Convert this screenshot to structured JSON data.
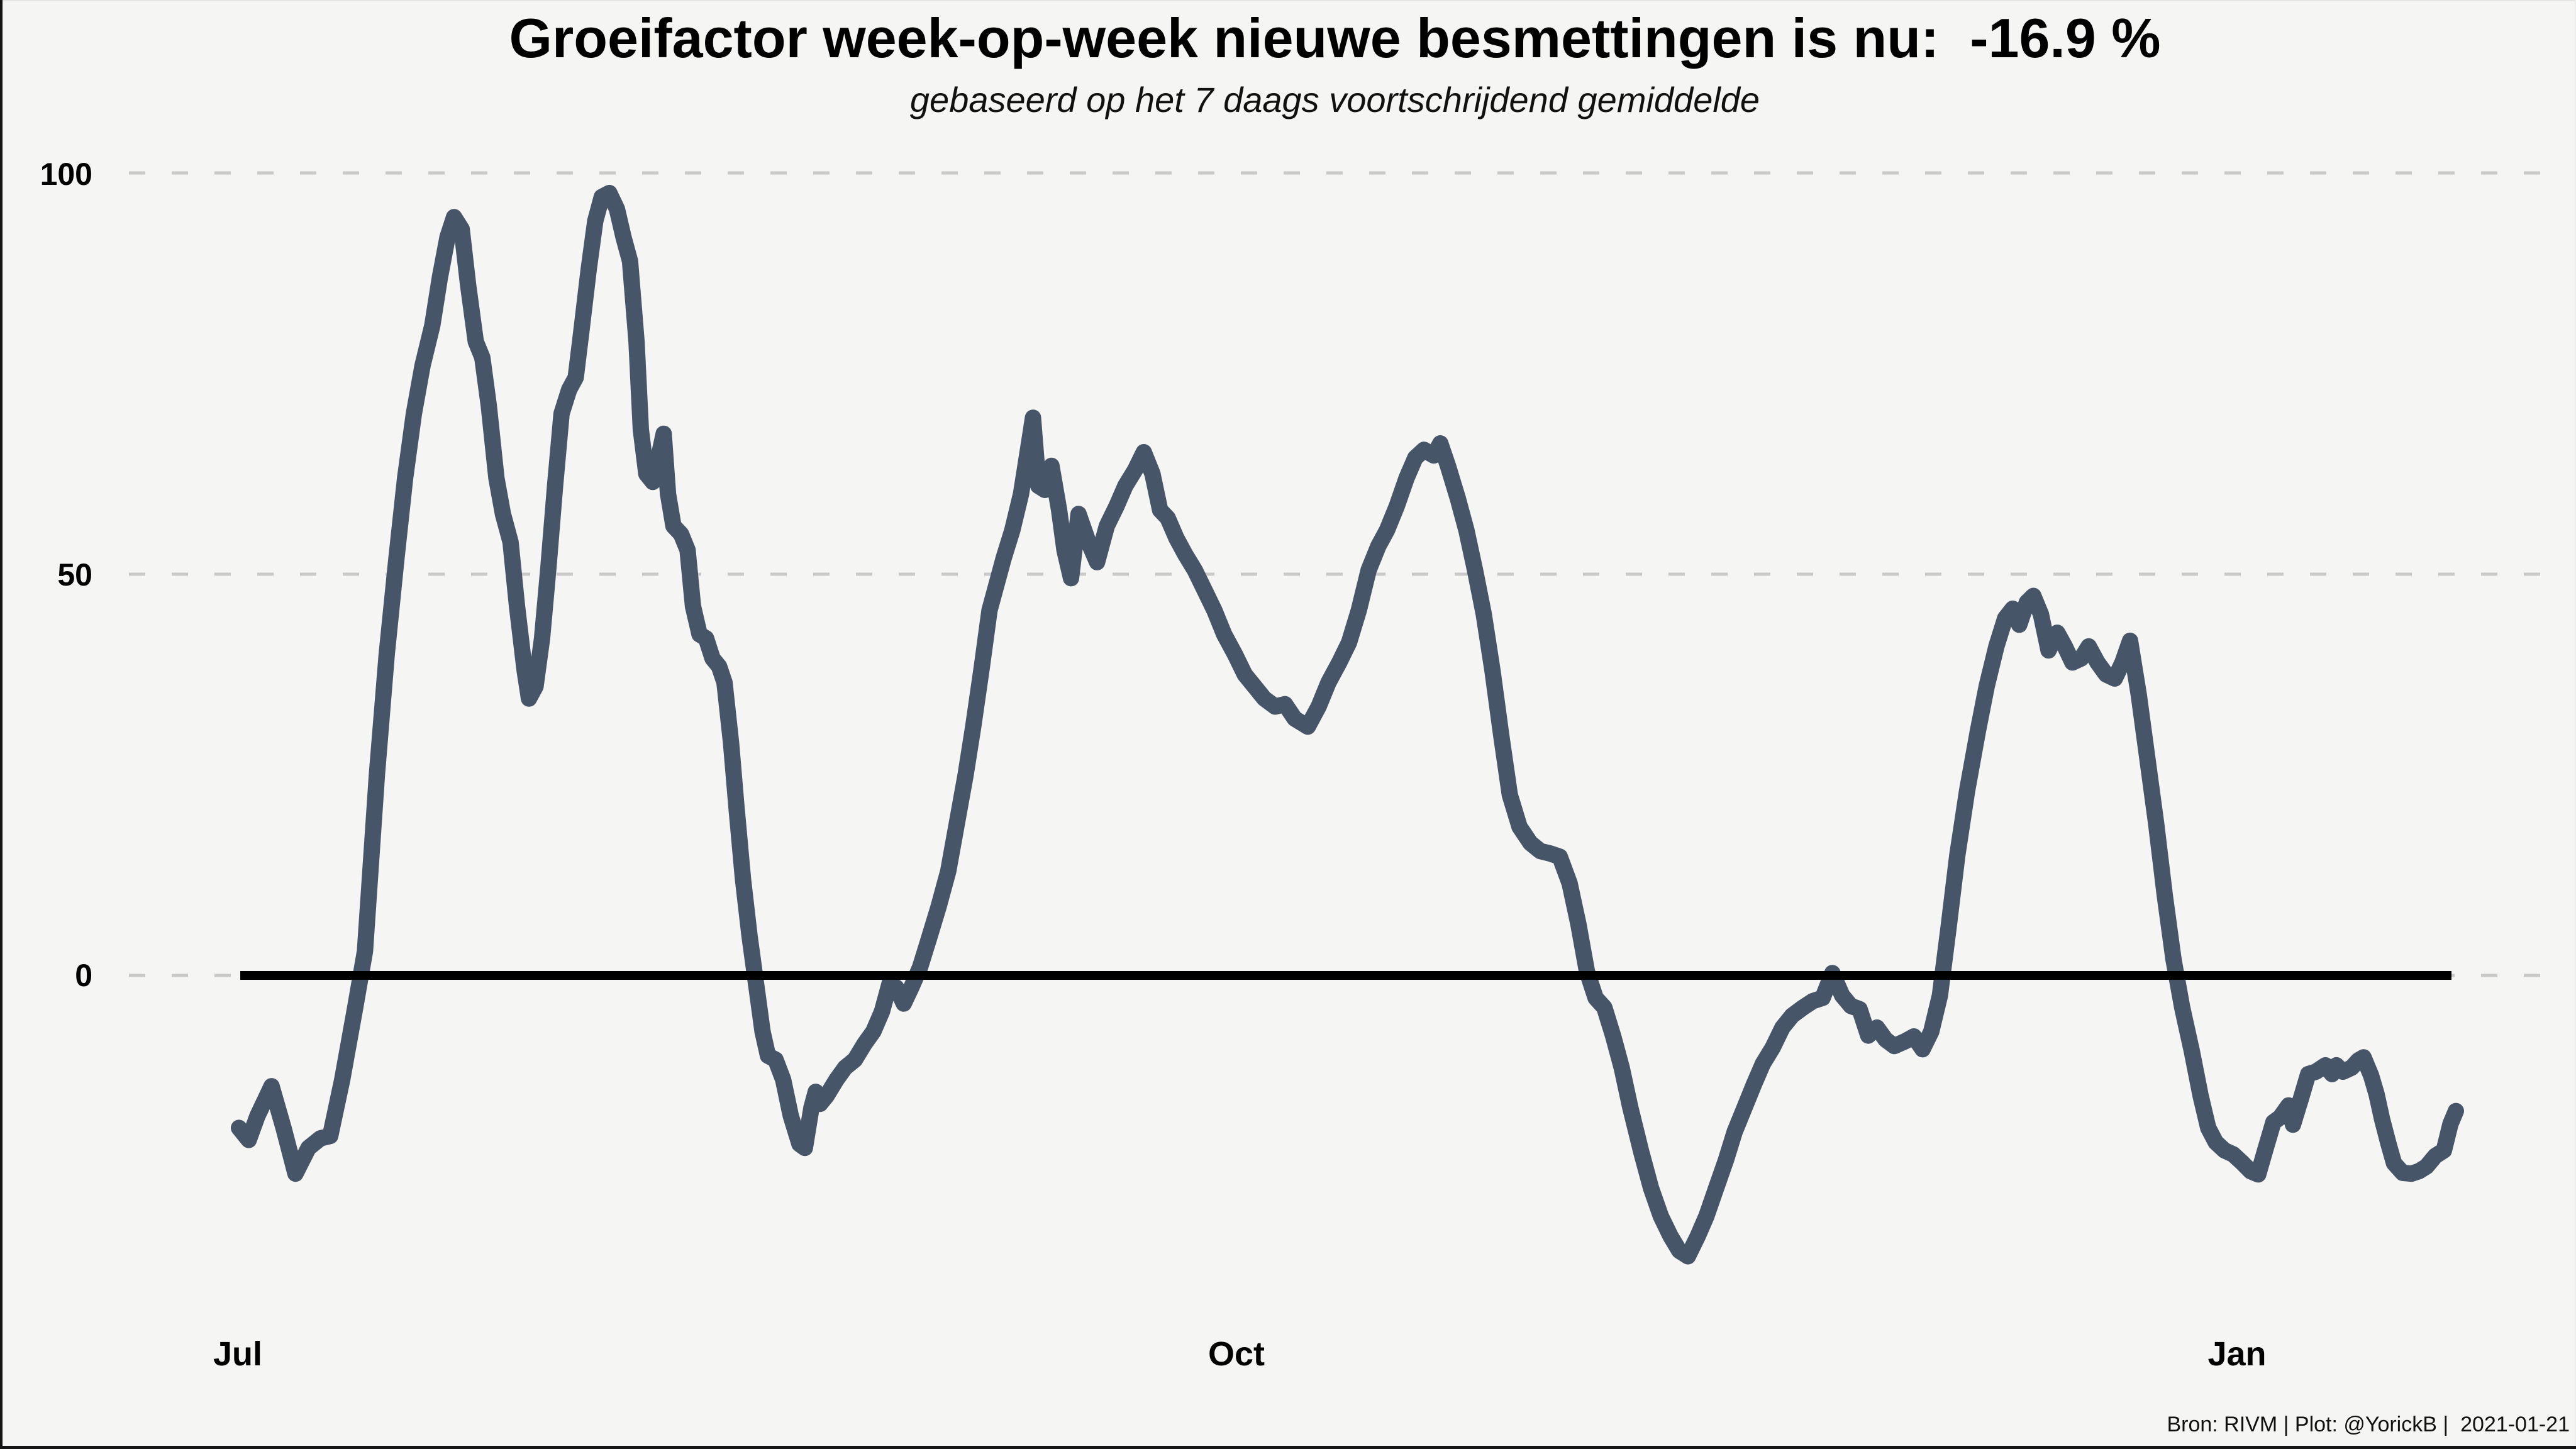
{
  "page": {
    "background": "#f5f5f3",
    "frame_color": "#151515"
  },
  "header": {
    "title": "Groeifactor week-op-week nieuwe besmettingen is nu:  -16.9 %",
    "subtitle": "gebaseerd op het 7 daags voortschrijdend gemiddelde"
  },
  "footer": {
    "attribution": "Bron: RIVM | Plot: @YorickB |  2021-01-21"
  },
  "chart_data": {
    "type": "line",
    "title": "Groeifactor week-op-week nieuwe besmettingen is nu:  -16.9 %",
    "subtitle": "gebaseerd op het 7 daags voortschrijdend gemiddelde",
    "current_value_pct": -16.9,
    "unit": "% groei week-op-week",
    "background": "#f5f5f3",
    "grid": "dashed horizontal gridlines at y = 0, 50, 100",
    "legend": "none",
    "y_axis": {
      "tick_labels": [
        "100",
        "50",
        "0"
      ],
      "gridline_values": [
        100,
        50,
        0
      ],
      "ylim": [
        -38,
        104
      ],
      "gridline_color": "#c9c9c9"
    },
    "x_axis": {
      "ticks": [
        {
          "label": "Jul",
          "day": 0
        },
        {
          "label": "Oct",
          "day": 92
        },
        {
          "label": "Jan",
          "day": 184
        }
      ],
      "domain_days": [
        0,
        204.1
      ],
      "end_date_shown": "2021-01-21"
    },
    "zero_line": {
      "color": "#000000",
      "style": "solid",
      "spans_data_range": true
    },
    "series": [
      {
        "name": "groeifactor-7d-gemiddelde",
        "color": "#475569",
        "points": [
          [
            0,
            -19
          ],
          [
            0.9,
            -20.5
          ],
          [
            1.7,
            -17.5
          ],
          [
            3,
            -13.8
          ],
          [
            4.1,
            -19
          ],
          [
            5.2,
            -24.7
          ],
          [
            6.4,
            -21.5
          ],
          [
            7.5,
            -20.3
          ],
          [
            8.4,
            -20
          ],
          [
            9.5,
            -13
          ],
          [
            10.7,
            -4
          ],
          [
            11.6,
            3
          ],
          [
            12.7,
            25
          ],
          [
            13.6,
            40
          ],
          [
            14.5,
            52
          ],
          [
            15.3,
            62
          ],
          [
            16.1,
            70
          ],
          [
            16.9,
            76
          ],
          [
            17.8,
            81
          ],
          [
            18.5,
            87
          ],
          [
            19.2,
            92
          ],
          [
            19.8,
            94.5
          ],
          [
            20.5,
            93
          ],
          [
            21.1,
            86
          ],
          [
            21.8,
            79
          ],
          [
            22.4,
            77
          ],
          [
            23,
            71
          ],
          [
            23.7,
            62
          ],
          [
            24.3,
            57.5
          ],
          [
            25,
            54
          ],
          [
            25.6,
            46
          ],
          [
            26.3,
            38
          ],
          [
            26.7,
            34.5
          ],
          [
            27.3,
            36
          ],
          [
            27.9,
            42
          ],
          [
            28.5,
            51
          ],
          [
            29.1,
            61
          ],
          [
            29.7,
            70
          ],
          [
            30.4,
            73
          ],
          [
            31,
            74.5
          ],
          [
            31.5,
            80
          ],
          [
            32.2,
            88
          ],
          [
            32.8,
            94
          ],
          [
            33.4,
            97
          ],
          [
            34.1,
            97.5
          ],
          [
            34.8,
            95.5
          ],
          [
            35.4,
            92
          ],
          [
            36,
            89
          ],
          [
            36.6,
            79
          ],
          [
            37,
            68
          ],
          [
            37.5,
            62.5
          ],
          [
            38.1,
            61.5
          ],
          [
            38.7,
            65
          ],
          [
            39.1,
            67.5
          ],
          [
            39.5,
            60
          ],
          [
            40,
            56
          ],
          [
            40.7,
            55
          ],
          [
            41.3,
            53
          ],
          [
            41.8,
            46
          ],
          [
            42.4,
            42.5
          ],
          [
            43,
            42
          ],
          [
            43.6,
            39.5
          ],
          [
            44.2,
            38.5
          ],
          [
            44.7,
            36.5
          ],
          [
            45.3,
            29
          ],
          [
            45.8,
            21
          ],
          [
            46.4,
            12
          ],
          [
            47,
            5
          ],
          [
            47.6,
            -1
          ],
          [
            48.2,
            -7
          ],
          [
            48.7,
            -10
          ],
          [
            49.4,
            -10.5
          ],
          [
            50.1,
            -13
          ],
          [
            50.8,
            -17.5
          ],
          [
            51.6,
            -21
          ],
          [
            52.1,
            -21.5
          ],
          [
            52.7,
            -16.5
          ],
          [
            53.1,
            -14.5
          ],
          [
            53.5,
            -16
          ],
          [
            54.1,
            -15
          ],
          [
            55,
            -13
          ],
          [
            55.8,
            -11.5
          ],
          [
            56.7,
            -10.5
          ],
          [
            57.6,
            -8.5
          ],
          [
            58.4,
            -7
          ],
          [
            59.2,
            -4.5
          ],
          [
            59.9,
            -1
          ],
          [
            60.5,
            -1.5
          ],
          [
            61.2,
            -3.5
          ],
          [
            61.9,
            -1.5
          ],
          [
            62.7,
            1
          ],
          [
            63.5,
            4.5
          ],
          [
            64.4,
            8.5
          ],
          [
            65.3,
            13
          ],
          [
            66.1,
            19
          ],
          [
            66.9,
            25
          ],
          [
            67.6,
            31
          ],
          [
            68.4,
            38.5
          ],
          [
            69.1,
            45.5
          ],
          [
            69.7,
            48.5
          ],
          [
            70.4,
            52
          ],
          [
            71.2,
            55.5
          ],
          [
            72,
            60
          ],
          [
            72.7,
            66
          ],
          [
            73.1,
            69.5
          ],
          [
            73.6,
            61
          ],
          [
            74.2,
            60.5
          ],
          [
            74.8,
            63.5
          ],
          [
            75.5,
            58
          ],
          [
            76,
            53
          ],
          [
            76.6,
            49.5
          ],
          [
            77.3,
            57.5
          ],
          [
            78.2,
            54
          ],
          [
            79,
            51.5
          ],
          [
            79.9,
            56
          ],
          [
            80.8,
            58.5
          ],
          [
            81.6,
            61
          ],
          [
            82.5,
            63
          ],
          [
            83.3,
            65.2
          ],
          [
            84.1,
            62.5
          ],
          [
            84.8,
            58
          ],
          [
            85.5,
            57
          ],
          [
            86.3,
            54.5
          ],
          [
            87.1,
            52.5
          ],
          [
            88,
            50.5
          ],
          [
            88.9,
            48
          ],
          [
            89.8,
            45.5
          ],
          [
            90.7,
            42.5
          ],
          [
            91.7,
            40
          ],
          [
            92.6,
            37.5
          ],
          [
            93.5,
            36
          ],
          [
            94.4,
            34.5
          ],
          [
            95.4,
            33.5
          ],
          [
            96.3,
            33.8
          ],
          [
            97.2,
            32
          ],
          [
            98.4,
            31
          ],
          [
            99.4,
            33.5
          ],
          [
            100.3,
            36.5
          ],
          [
            101.3,
            39
          ],
          [
            102.2,
            41.5
          ],
          [
            103.1,
            45.5
          ],
          [
            104,
            50.5
          ],
          [
            104.9,
            53.5
          ],
          [
            105.7,
            55.5
          ],
          [
            106.6,
            58.5
          ],
          [
            107.5,
            62
          ],
          [
            108.3,
            64.5
          ],
          [
            109.1,
            65.5
          ],
          [
            110,
            64.8
          ],
          [
            110.6,
            66.3
          ],
          [
            111.3,
            63.5
          ],
          [
            112.2,
            59.5
          ],
          [
            113,
            55.5
          ],
          [
            113.8,
            50.5
          ],
          [
            114.6,
            45
          ],
          [
            115.4,
            38
          ],
          [
            116.2,
            30
          ],
          [
            117,
            22.5
          ],
          [
            117.9,
            18.5
          ],
          [
            118.9,
            16.5
          ],
          [
            119.8,
            15.5
          ],
          [
            120.7,
            15.2
          ],
          [
            121.6,
            14.8
          ],
          [
            122.5,
            11.5
          ],
          [
            123.3,
            6.5
          ],
          [
            124.1,
            0.5
          ],
          [
            124.9,
            -2.8
          ],
          [
            125.7,
            -4
          ],
          [
            126.5,
            -7.5
          ],
          [
            127.3,
            -11.5
          ],
          [
            128.1,
            -16.5
          ],
          [
            129.1,
            -22
          ],
          [
            130,
            -26.5
          ],
          [
            130.9,
            -30
          ],
          [
            131.8,
            -32.5
          ],
          [
            132.6,
            -34.3
          ],
          [
            133.4,
            -35
          ],
          [
            134.3,
            -32.5
          ],
          [
            135.1,
            -30
          ],
          [
            136,
            -26.5
          ],
          [
            136.9,
            -23
          ],
          [
            137.7,
            -19.5
          ],
          [
            138.6,
            -16.5
          ],
          [
            139.5,
            -13.5
          ],
          [
            140.3,
            -11
          ],
          [
            141.2,
            -9
          ],
          [
            142.1,
            -6.5
          ],
          [
            143,
            -5
          ],
          [
            144,
            -4
          ],
          [
            144.9,
            -3.2
          ],
          [
            145.8,
            -2.8
          ],
          [
            146.7,
            0.3
          ],
          [
            147.6,
            -2.5
          ],
          [
            148.4,
            -3.8
          ],
          [
            149.2,
            -4.2
          ],
          [
            150,
            -7.5
          ],
          [
            150.8,
            -6.5
          ],
          [
            151.6,
            -8
          ],
          [
            152.4,
            -8.8
          ],
          [
            153.4,
            -8.2
          ],
          [
            154.2,
            -7.6
          ],
          [
            155,
            -9.2
          ],
          [
            155.8,
            -7
          ],
          [
            156.6,
            -2.5
          ],
          [
            157.4,
            6
          ],
          [
            158.2,
            15
          ],
          [
            159.1,
            23
          ],
          [
            160.1,
            30.5
          ],
          [
            160.9,
            36
          ],
          [
            161.8,
            41
          ],
          [
            162.6,
            44.5
          ],
          [
            163.3,
            45.7
          ],
          [
            163.9,
            43.7
          ],
          [
            164.6,
            46.5
          ],
          [
            165.2,
            47.3
          ],
          [
            165.9,
            45
          ],
          [
            166.6,
            40.5
          ],
          [
            167.4,
            42.7
          ],
          [
            168.1,
            41
          ],
          [
            168.8,
            39
          ],
          [
            169.6,
            39.5
          ],
          [
            170.3,
            41
          ],
          [
            171.1,
            39
          ],
          [
            171.9,
            37.5
          ],
          [
            172.7,
            37
          ],
          [
            173.4,
            39
          ],
          [
            174.1,
            41.7
          ],
          [
            174.9,
            35
          ],
          [
            175.7,
            27
          ],
          [
            176.5,
            19
          ],
          [
            177.3,
            10
          ],
          [
            178.1,
            2
          ],
          [
            178.9,
            -4
          ],
          [
            179.8,
            -9.5
          ],
          [
            180.6,
            -15
          ],
          [
            181.3,
            -19
          ],
          [
            182,
            -20.8
          ],
          [
            182.8,
            -21.8
          ],
          [
            183.6,
            -22.3
          ],
          [
            184.4,
            -23.3
          ],
          [
            185.2,
            -24.4
          ],
          [
            185.9,
            -24.8
          ],
          [
            186.6,
            -21.5
          ],
          [
            187.3,
            -18.3
          ],
          [
            187.9,
            -17.7
          ],
          [
            188.7,
            -16.2
          ],
          [
            189.1,
            -18.6
          ],
          [
            189.8,
            -15.5
          ],
          [
            190.5,
            -12.3
          ],
          [
            191.2,
            -12
          ],
          [
            192.1,
            -11.2
          ],
          [
            192.7,
            -12.3
          ],
          [
            193.1,
            -11.2
          ],
          [
            193.7,
            -12
          ],
          [
            194.5,
            -11.5
          ],
          [
            195.1,
            -10.6
          ],
          [
            195.6,
            -10.2
          ],
          [
            196.3,
            -12.5
          ],
          [
            196.8,
            -14.8
          ],
          [
            197.3,
            -17.9
          ],
          [
            197.9,
            -21
          ],
          [
            198.4,
            -23.4
          ],
          [
            199.2,
            -24.6
          ],
          [
            200,
            -24.7
          ],
          [
            200.7,
            -24.4
          ],
          [
            201.4,
            -23.8
          ],
          [
            202.2,
            -22.5
          ],
          [
            203,
            -21.8
          ],
          [
            203.6,
            -18.5
          ],
          [
            204.1,
            -16.9
          ]
        ]
      }
    ]
  }
}
